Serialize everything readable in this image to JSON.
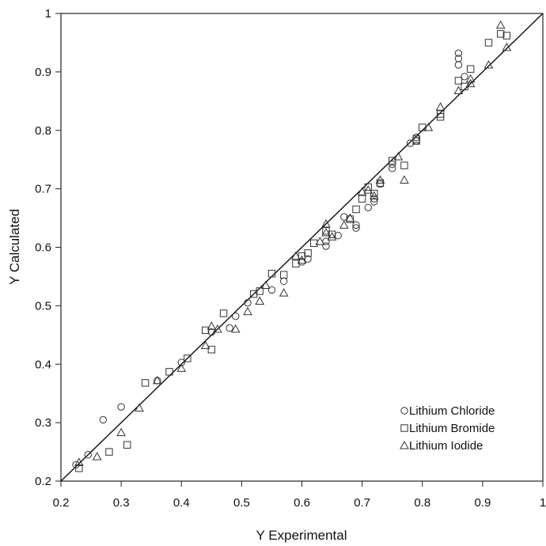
{
  "chart_data": {
    "type": "scatter",
    "title": "",
    "xlabel": "Y Experimental",
    "ylabel": "Y Calculated",
    "xlim": [
      0.2,
      1
    ],
    "ylim": [
      0.2,
      1
    ],
    "x_ticks": [
      "0.2",
      "0.3",
      "0.4",
      "0.5",
      "0.6",
      "0.7",
      "0.8",
      "0.9",
      "1"
    ],
    "y_ticks": [
      "0.2",
      "0.3",
      "0.4",
      "0.5",
      "0.6",
      "0.7",
      "0.8",
      "0.9",
      "1"
    ],
    "grid": false,
    "legend_position": "bottom-right",
    "reference_line": {
      "type": "y=x",
      "from": [
        0.2,
        0.2
      ],
      "to": [
        1,
        1
      ]
    },
    "series": [
      {
        "name": "Lithium Chloride",
        "marker": "circle",
        "points": [
          [
            0.225,
            0.228
          ],
          [
            0.245,
            0.245
          ],
          [
            0.27,
            0.305
          ],
          [
            0.3,
            0.327
          ],
          [
            0.36,
            0.372
          ],
          [
            0.4,
            0.403
          ],
          [
            0.45,
            0.455
          ],
          [
            0.48,
            0.462
          ],
          [
            0.49,
            0.482
          ],
          [
            0.51,
            0.505
          ],
          [
            0.55,
            0.527
          ],
          [
            0.57,
            0.542
          ],
          [
            0.6,
            0.575
          ],
          [
            0.61,
            0.58
          ],
          [
            0.64,
            0.602
          ],
          [
            0.64,
            0.61
          ],
          [
            0.66,
            0.62
          ],
          [
            0.67,
            0.652
          ],
          [
            0.69,
            0.638
          ],
          [
            0.69,
            0.633
          ],
          [
            0.71,
            0.668
          ],
          [
            0.72,
            0.683
          ],
          [
            0.72,
            0.678
          ],
          [
            0.73,
            0.708
          ],
          [
            0.75,
            0.742
          ],
          [
            0.75,
            0.735
          ],
          [
            0.78,
            0.778
          ],
          [
            0.79,
            0.788
          ],
          [
            0.79,
            0.782
          ],
          [
            0.86,
            0.932
          ],
          [
            0.86,
            0.923
          ],
          [
            0.86,
            0.912
          ],
          [
            0.87,
            0.892
          ]
        ]
      },
      {
        "name": "Lithium Bromide",
        "marker": "square",
        "points": [
          [
            0.23,
            0.222
          ],
          [
            0.28,
            0.25
          ],
          [
            0.31,
            0.262
          ],
          [
            0.34,
            0.368
          ],
          [
            0.38,
            0.387
          ],
          [
            0.41,
            0.41
          ],
          [
            0.44,
            0.458
          ],
          [
            0.45,
            0.425
          ],
          [
            0.47,
            0.487
          ],
          [
            0.52,
            0.52
          ],
          [
            0.53,
            0.525
          ],
          [
            0.55,
            0.555
          ],
          [
            0.57,
            0.553
          ],
          [
            0.59,
            0.572
          ],
          [
            0.6,
            0.585
          ],
          [
            0.61,
            0.59
          ],
          [
            0.62,
            0.607
          ],
          [
            0.64,
            0.628
          ],
          [
            0.65,
            0.622
          ],
          [
            0.68,
            0.648
          ],
          [
            0.69,
            0.665
          ],
          [
            0.7,
            0.683
          ],
          [
            0.71,
            0.703
          ],
          [
            0.72,
            0.692
          ],
          [
            0.73,
            0.71
          ],
          [
            0.75,
            0.748
          ],
          [
            0.77,
            0.74
          ],
          [
            0.79,
            0.782
          ],
          [
            0.79,
            0.785
          ],
          [
            0.8,
            0.805
          ],
          [
            0.83,
            0.823
          ],
          [
            0.83,
            0.828
          ],
          [
            0.86,
            0.885
          ],
          [
            0.87,
            0.875
          ],
          [
            0.88,
            0.905
          ],
          [
            0.91,
            0.95
          ],
          [
            0.93,
            0.965
          ],
          [
            0.94,
            0.962
          ]
        ]
      },
      {
        "name": "Lithium Iodide",
        "marker": "triangle",
        "points": [
          [
            0.23,
            0.232
          ],
          [
            0.26,
            0.242
          ],
          [
            0.3,
            0.283
          ],
          [
            0.33,
            0.325
          ],
          [
            0.36,
            0.372
          ],
          [
            0.4,
            0.393
          ],
          [
            0.44,
            0.432
          ],
          [
            0.45,
            0.465
          ],
          [
            0.46,
            0.46
          ],
          [
            0.49,
            0.46
          ],
          [
            0.51,
            0.49
          ],
          [
            0.53,
            0.508
          ],
          [
            0.54,
            0.535
          ],
          [
            0.57,
            0.522
          ],
          [
            0.59,
            0.585
          ],
          [
            0.6,
            0.578
          ],
          [
            0.63,
            0.61
          ],
          [
            0.64,
            0.64
          ],
          [
            0.64,
            0.625
          ],
          [
            0.65,
            0.618
          ],
          [
            0.67,
            0.638
          ],
          [
            0.68,
            0.65
          ],
          [
            0.7,
            0.695
          ],
          [
            0.71,
            0.698
          ],
          [
            0.72,
            0.688
          ],
          [
            0.73,
            0.715
          ],
          [
            0.76,
            0.755
          ],
          [
            0.77,
            0.715
          ],
          [
            0.81,
            0.805
          ],
          [
            0.83,
            0.84
          ],
          [
            0.86,
            0.868
          ],
          [
            0.88,
            0.88
          ],
          [
            0.88,
            0.888
          ],
          [
            0.91,
            0.912
          ],
          [
            0.93,
            0.98
          ],
          [
            0.94,
            0.942
          ]
        ]
      }
    ]
  }
}
